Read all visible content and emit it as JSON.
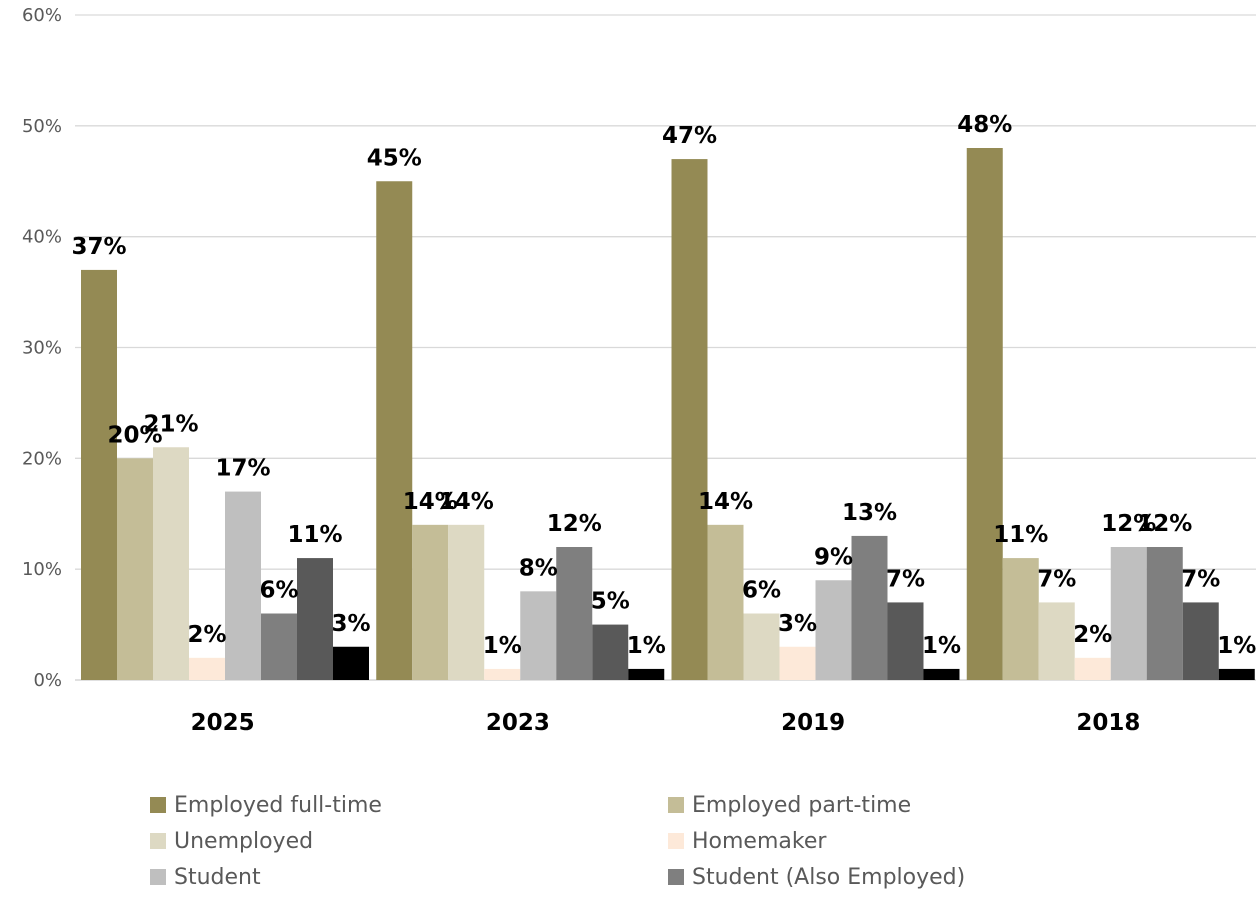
{
  "chart_data": {
    "type": "bar",
    "categories": [
      "2025",
      "2023",
      "2019",
      "2018"
    ],
    "ylim": [
      0,
      60
    ],
    "yticks": [
      "0%",
      "10%",
      "20%",
      "30%",
      "40%",
      "50%",
      "60%"
    ],
    "grid": true,
    "legend_placement": "bottom",
    "series": [
      {
        "name": "Employed full-time",
        "color": "#948A54",
        "values": [
          37,
          45,
          47,
          48
        ],
        "labels": [
          "37%",
          "45%",
          "47%",
          "48%"
        ]
      },
      {
        "name": "Employed part-time",
        "color": "#C4BD97",
        "values": [
          20,
          14,
          14,
          11
        ],
        "labels": [
          "20%",
          "14%",
          "14%",
          "11%"
        ]
      },
      {
        "name": "Unemployed",
        "color": "#DDD9C3",
        "values": [
          21,
          14,
          6,
          7
        ],
        "labels": [
          "21%",
          "14%",
          "6%",
          "7%"
        ]
      },
      {
        "name": "Homemaker",
        "color": "#FDE9D9",
        "values": [
          2,
          1,
          3,
          2
        ],
        "labels": [
          "2%",
          "1%",
          "3%",
          "2%"
        ]
      },
      {
        "name": "Student",
        "color": "#BFBFBF",
        "values": [
          17,
          8,
          9,
          12
        ],
        "labels": [
          "17%",
          "8%",
          "9%",
          "12%"
        ]
      },
      {
        "name": "Student (Also Employed)",
        "color": "#7F7F7F",
        "values": [
          6,
          12,
          13,
          12
        ],
        "labels": [
          "6%",
          "12%",
          "13%",
          "12%"
        ]
      },
      {
        "name": "",
        "color": "#595959",
        "values": [
          11,
          5,
          7,
          7
        ],
        "labels": [
          "11%",
          "5%",
          "7%",
          "7%"
        ]
      },
      {
        "name": "",
        "color": "#000000",
        "values": [
          3,
          1,
          1,
          1
        ],
        "labels": [
          "3%",
          "1%",
          "1%",
          "1%"
        ]
      }
    ]
  }
}
